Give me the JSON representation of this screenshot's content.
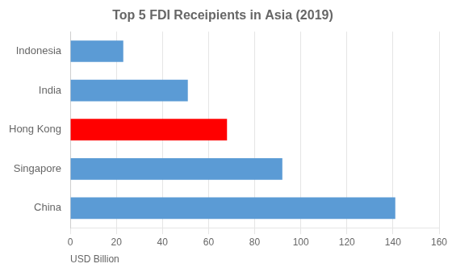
{
  "chart_data": {
    "type": "bar",
    "orientation": "horizontal",
    "title": "Top 5 FDI Receipients in Asia (2019)",
    "categories": [
      "China",
      "Singapore",
      "Hong Kong",
      "India",
      "Indonesia"
    ],
    "values": [
      141,
      92,
      68,
      51,
      23
    ],
    "colors": [
      "#5B9BD5",
      "#5B9BD5",
      "#FF0000",
      "#5B9BD5",
      "#5B9BD5"
    ],
    "xlabel": "USD Billion",
    "xlim": [
      0,
      160
    ],
    "xticks": [
      0,
      20,
      40,
      60,
      80,
      100,
      120,
      140,
      160
    ],
    "grid": true
  }
}
